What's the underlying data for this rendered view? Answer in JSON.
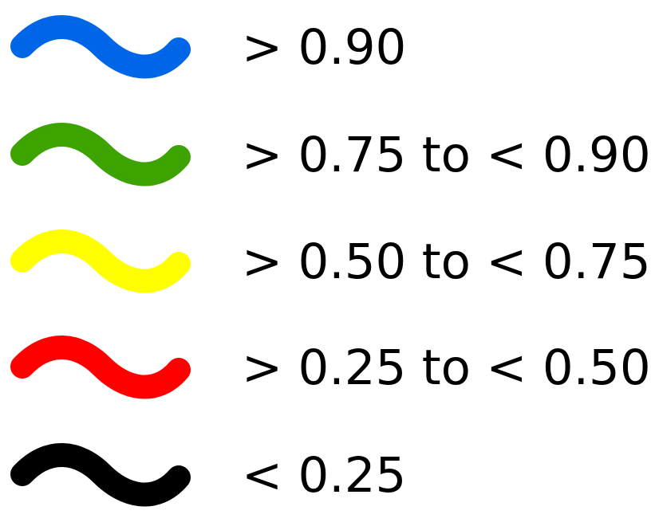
{
  "legend": {
    "items": [
      {
        "label": "> 0.90",
        "color": "#0066E8",
        "icon": "wave-icon"
      },
      {
        "label": "> 0.75 to < 0.90",
        "color": "#3DA300",
        "icon": "wave-icon"
      },
      {
        "label": "> 0.50 to < 0.75",
        "color": "#FFFF00",
        "icon": "wave-icon"
      },
      {
        "label": "> 0.25 to < 0.50",
        "color": "#FF0000",
        "icon": "wave-icon"
      },
      {
        "label": "< 0.25",
        "color": "#000000",
        "icon": "wave-icon"
      }
    ]
  }
}
